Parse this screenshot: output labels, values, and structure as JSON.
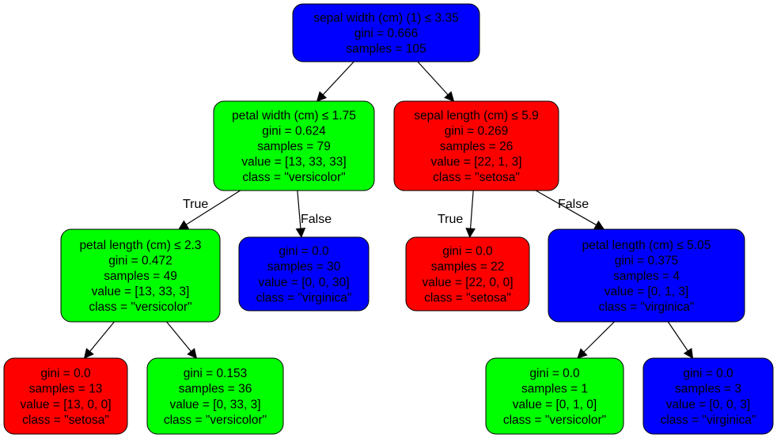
{
  "colors": {
    "setosa": "#ff0000",
    "versicolor": "#00ff00",
    "virginica": "#0000ff"
  },
  "nodes": [
    {
      "id": "n0",
      "fill": "virginica",
      "lines": [
        "sepal width (cm) (1) ≤ 3.35",
        "gini = 0.666",
        "samples = 105"
      ]
    },
    {
      "id": "n1",
      "fill": "versicolor",
      "lines": [
        "petal width (cm) ≤ 1.75",
        "gini = 0.624",
        "samples = 79",
        "value = [13, 33, 33]",
        "class = \"versicolor\""
      ]
    },
    {
      "id": "n2",
      "fill": "setosa",
      "lines": [
        "sepal length (cm) ≤ 5.9",
        "gini = 0.269",
        "samples = 26",
        "value = [22, 1, 3]",
        "class = \"setosa\""
      ]
    },
    {
      "id": "n3",
      "fill": "versicolor",
      "lines": [
        "petal length (cm) ≤ 2.3",
        "gini = 0.472",
        "samples = 49",
        "value = [13, 33, 3]",
        "class = \"versicolor\""
      ]
    },
    {
      "id": "n4",
      "fill": "virginica",
      "lines": [
        "gini = 0.0",
        "samples = 30",
        "value = [0, 0, 30]",
        "class = \"virginica\""
      ]
    },
    {
      "id": "n5",
      "fill": "setosa",
      "lines": [
        "gini = 0.0",
        "samples = 22",
        "value = [22, 0, 0]",
        "class = \"setosa\""
      ]
    },
    {
      "id": "n6",
      "fill": "virginica",
      "lines": [
        "petal length (cm) ≤ 5.05",
        "gini = 0.375",
        "samples = 4",
        "value = [0, 1, 3]",
        "class = \"virginica\""
      ]
    },
    {
      "id": "n7",
      "fill": "setosa",
      "lines": [
        "gini = 0.0",
        "samples = 13",
        "value = [13, 0, 0]",
        "class = \"setosa\""
      ]
    },
    {
      "id": "n8",
      "fill": "versicolor",
      "lines": [
        "gini = 0.153",
        "samples = 36",
        "value = [0, 33, 3]",
        "class = \"versicolor\""
      ]
    },
    {
      "id": "n9",
      "fill": "versicolor",
      "lines": [
        "gini = 0.0",
        "samples = 1",
        "value = [0, 1, 0]",
        "class = \"versicolor\""
      ]
    },
    {
      "id": "n10",
      "fill": "virginica",
      "lines": [
        "gini = 0.0",
        "samples = 3",
        "value = [0, 0, 3]",
        "class = \"virginica\""
      ]
    }
  ],
  "edges": [
    {
      "from": "n0",
      "to": "n1",
      "label": ""
    },
    {
      "from": "n0",
      "to": "n2",
      "label": ""
    },
    {
      "from": "n1",
      "to": "n3",
      "label": "True"
    },
    {
      "from": "n1",
      "to": "n4",
      "label": "False"
    },
    {
      "from": "n2",
      "to": "n5",
      "label": "True"
    },
    {
      "from": "n2",
      "to": "n6",
      "label": "False"
    },
    {
      "from": "n3",
      "to": "n7",
      "label": ""
    },
    {
      "from": "n3",
      "to": "n8",
      "label": ""
    },
    {
      "from": "n6",
      "to": "n9",
      "label": ""
    },
    {
      "from": "n6",
      "to": "n10",
      "label": ""
    }
  ]
}
